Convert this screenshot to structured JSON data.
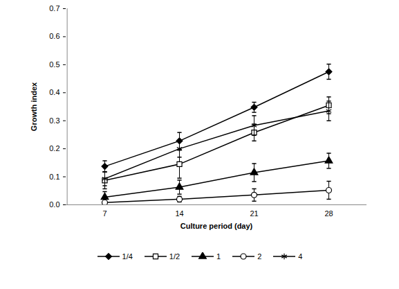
{
  "chart_data": {
    "type": "line",
    "x_label": "Culture period (day)",
    "y_label": "Growth index",
    "categories": [
      "7",
      "14",
      "21",
      "28"
    ],
    "ylim": [
      0,
      0.7
    ],
    "yticks": [
      {
        "value": 0,
        "label": "0.0"
      },
      {
        "value": 0.1,
        "label": "0.1"
      },
      {
        "value": 0.2,
        "label": "0.2"
      },
      {
        "value": 0.3,
        "label": "0.3"
      },
      {
        "value": 0.4,
        "label": "0.4"
      },
      {
        "value": 0.5,
        "label": "0.5"
      },
      {
        "value": 0.6,
        "label": "0.6"
      },
      {
        "value": 0.7,
        "label": "0.7"
      }
    ],
    "grid": false,
    "legend": "bottom",
    "series": [
      {
        "name": "1/4",
        "color": "#000000",
        "marker": "diamond",
        "values": [
          0.137,
          0.228,
          0.348,
          0.475
        ],
        "errors": [
          0.02,
          0.03,
          0.018,
          0.027
        ]
      },
      {
        "name": "1/2",
        "color": "#000000",
        "marker": "square-open",
        "values": [
          0.087,
          0.145,
          0.258,
          0.355
        ],
        "errors": [
          0.03,
          0.05,
          0.03,
          0.03
        ]
      },
      {
        "name": "1",
        "color": "#000000",
        "marker": "triangle",
        "values": [
          0.027,
          0.063,
          0.115,
          0.157
        ],
        "errors": [
          0.02,
          0.025,
          0.032,
          0.027
        ]
      },
      {
        "name": "2",
        "color": "#000000",
        "marker": "circle-open",
        "values": [
          0.008,
          0.02,
          0.035,
          0.052
        ],
        "errors": [
          0.005,
          0.01,
          0.022,
          0.032
        ]
      },
      {
        "name": "4",
        "color": "#000000",
        "marker": "asterisk",
        "values": [
          0.093,
          0.2,
          0.283,
          0.335
        ],
        "errors": [
          0.025,
          0.03,
          0.035,
          0.035
        ]
      }
    ]
  }
}
